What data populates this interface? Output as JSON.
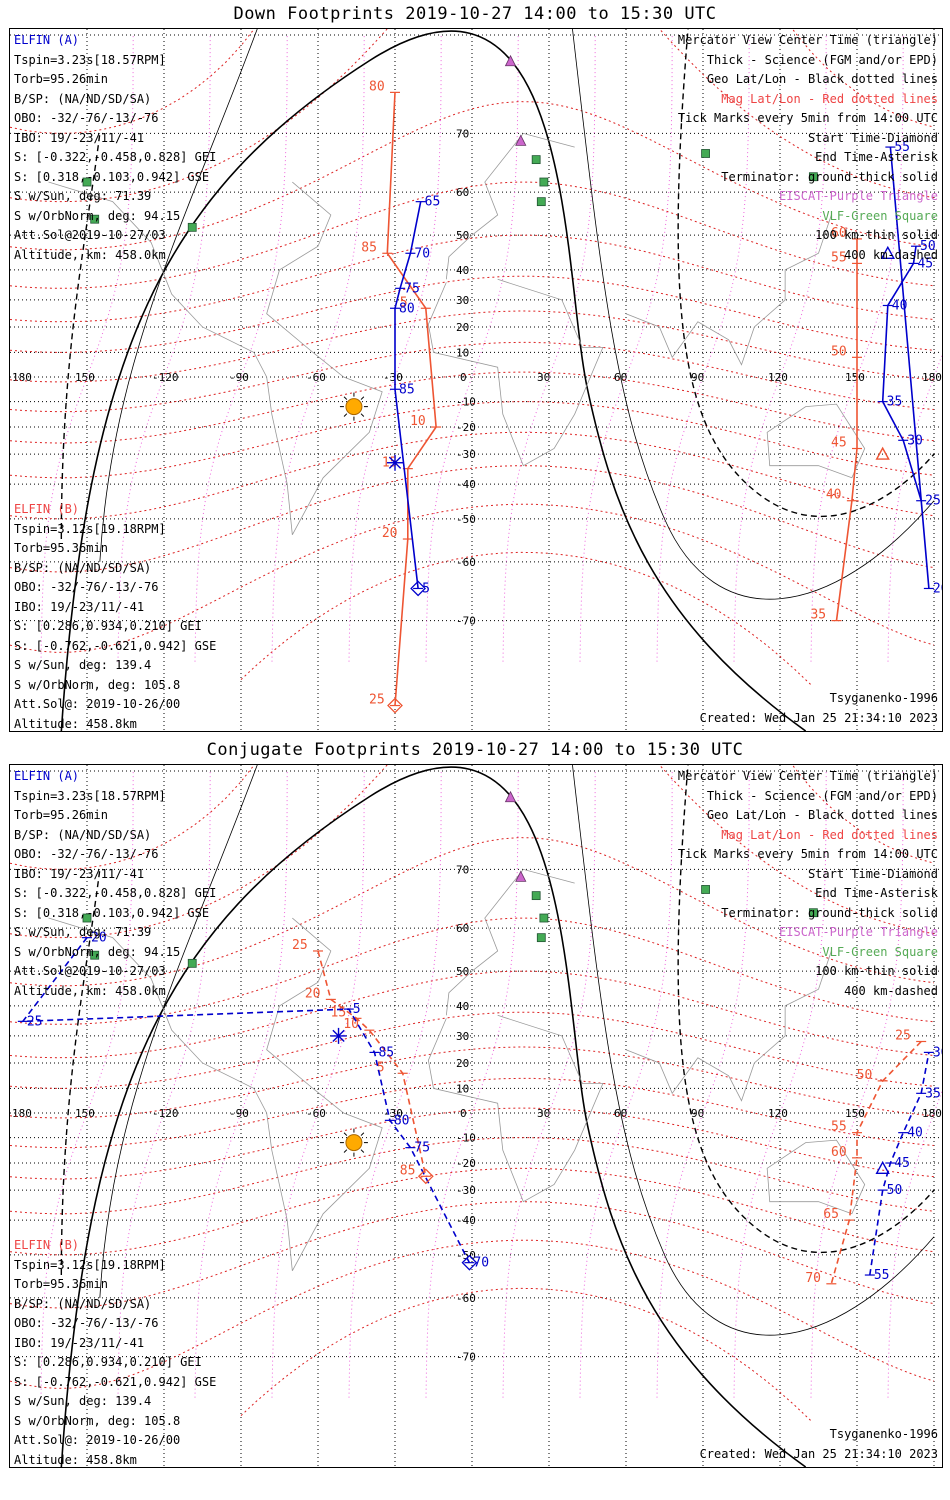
{
  "panels": [
    {
      "title": "Down Footprints 2019-10-27 14:00 to 15:30 UTC",
      "elfin_a": [
        "ELFIN (A)",
        "Tspin=3.23s[18.57RPM]",
        "Torb=95.26min",
        "B/SP: (NA/ND/SD/SA)",
        "OBO: -32/-76/-13/-76",
        "IBO: 19/-23/11/-41",
        "S: [-0.322,-0.458,0.828] GEI",
        "S: [0.318,-0.103,0.942] GSE",
        "S w/Sun, deg: 71.39",
        "S w/OrbNorm, deg: 94.15",
        "Att.Sol@2019-10-27/03",
        "Altitude, km: 458.0km"
      ],
      "elfin_b": [
        "ELFIN (B)",
        "Tspin=3.12s[19.18RPM]",
        "Torb=95.36min",
        "B/SP: (NA/ND/SD/SA)",
        "OBO: -32/-76/-13/-76",
        "IBO: 19/-23/11/-41",
        "S: [0.286,0.934,0.210] GEI",
        "S: [-0.762,-0.621,0.942] GSE",
        "S w/Sun, deg: 139.4",
        "S w/OrbNorm, deg: 105.8",
        "Att.Sol@: 2019-10-26/00",
        "Altitude: 458.8km"
      ],
      "legend": [
        "Mercator View Center Time (triangle)",
        "Thick - Science (FGM and/or EPD)",
        "Geo Lat/Lon - Black dotted lines",
        "Mag Lat/Lon - Red dotted lines",
        "Tick Marks every 5min from 14:00 UTC",
        "Start Time-Diamond",
        "End Time-Asterisk",
        "Terminator: ground-thick solid",
        "EISCAT-Purple Triangle",
        "VLF-Green Square",
        "100 km-thin solid",
        "400 km-dashed"
      ],
      "model": "Tsyganenko-1996",
      "created": "Created: Wed Jan 25 21:34:10 2023",
      "blue_track": [
        [
          -20,
          58,
          "65"
        ],
        [
          -24,
          45,
          "70"
        ],
        [
          -28,
          34,
          "75"
        ],
        [
          -30,
          27,
          "80"
        ],
        [
          -30,
          -5,
          "85"
        ],
        [
          -21,
          -65,
          "5"
        ],
        [
          173,
          47,
          "50"
        ],
        [
          172,
          42,
          "45"
        ],
        [
          162,
          28,
          "40"
        ],
        [
          160,
          -10,
          "35"
        ],
        [
          168,
          -25,
          "30"
        ],
        [
          175,
          -45,
          "25"
        ],
        [
          178,
          -65,
          "20"
        ],
        [
          163,
          68,
          "55"
        ]
      ],
      "red_track": [
        [
          -30,
          75,
          "80"
        ],
        [
          -33,
          45,
          "85"
        ],
        [
          -18,
          27,
          "5"
        ],
        [
          -14,
          -20,
          "10"
        ],
        [
          -25,
          -35,
          "15"
        ],
        [
          -25,
          -55,
          "20"
        ],
        [
          -30,
          -79,
          "25"
        ],
        [
          150,
          49,
          "60"
        ],
        [
          150,
          42,
          "55"
        ],
        [
          150,
          8,
          "50"
        ],
        [
          150,
          -28,
          "45"
        ],
        [
          148,
          -45,
          "40"
        ],
        [
          142,
          -70,
          "35"
        ]
      ]
    },
    {
      "title": "Conjugate Footprints 2019-10-27 14:00 to 15:30 UTC",
      "elfin_a": [
        "ELFIN (A)",
        "Tspin=3.23s[18.57RPM]",
        "Torb=95.26min",
        "B/SP: (NA/ND/SD/SA)",
        "OBO: -32/-76/-13/-76",
        "IBO: 19/-23/11/-41",
        "S: [-0.322,-0.458,0.828] GEI",
        "S: [0.318,-0.103,0.942] GSE",
        "S w/Sun, deg: 71.39",
        "S w/OrbNorm, deg: 94.15",
        "Att.Sol@2019-10-27/03",
        "Altitude, km: 458.0km"
      ],
      "elfin_b": [
        "ELFIN (B)",
        "Tspin=3.12s[19.18RPM]",
        "Torb=95.36min",
        "B/SP: (NA/ND/SD/SA)",
        "OBO: -32/-76/-13/-76",
        "IBO: 19/-23/11/-41",
        "S: [0.286,0.934,0.210] GEI",
        "S: [-0.762,-0.621,0.942] GSE",
        "S w/Sun, deg: 139.4",
        "S w/OrbNorm, deg: 105.8",
        "Att.Sol@: 2019-10-26/00",
        "Altitude: 458.8km"
      ],
      "legend": [
        "Mercator View Center Time (triangle)",
        "Thick - Science (FGM and/or EPD)",
        "Geo Lat/Lon - Black dotted lines",
        "Mag Lat/Lon - Red dotted lines",
        "Tick Marks every 5min from 14:00 UTC",
        "Start Time-Diamond",
        "End Time-Asterisk",
        "Terminator: ground-thick solid",
        "EISCAT-Purple Triangle",
        "VLF-Green Square",
        "100 km-thin solid",
        "400 km-dashed"
      ],
      "model": "Tsyganenko-1996",
      "created": "Created: Wed Jan 25 21:34:10 2023",
      "blue_track": [
        [
          -150,
          58,
          "20"
        ],
        [
          -175,
          35,
          "25"
        ],
        [
          -48,
          39,
          "5"
        ],
        [
          -38,
          24,
          "85"
        ],
        [
          -32,
          -3,
          "80"
        ],
        [
          -24,
          -14,
          "75"
        ],
        [
          -1,
          -52,
          "70"
        ],
        [
          155,
          -55,
          "55"
        ],
        [
          160,
          -30,
          "50"
        ],
        [
          163,
          -20,
          "45"
        ],
        [
          168,
          -8,
          "40"
        ],
        [
          175,
          8,
          "35"
        ],
        [
          178,
          24,
          "30"
        ]
      ],
      "red_track": [
        [
          -60,
          55,
          "25"
        ],
        [
          -55,
          42,
          "20"
        ],
        [
          -45,
          36,
          "15"
        ],
        [
          -40,
          32,
          "10"
        ],
        [
          -27,
          16,
          "5"
        ],
        [
          -18,
          -25,
          "85"
        ],
        [
          175,
          28,
          "25"
        ],
        [
          160,
          13,
          "50"
        ],
        [
          150,
          -8,
          "55"
        ],
        [
          150,
          -18,
          "60"
        ],
        [
          147,
          -40,
          "65"
        ],
        [
          140,
          -57,
          "70"
        ]
      ]
    }
  ],
  "colors": {
    "blue": "#0000cc",
    "red": "#ee5533",
    "magenta": "#cc66cc",
    "green": "#44aa55",
    "sun": "#ffaa00"
  }
}
